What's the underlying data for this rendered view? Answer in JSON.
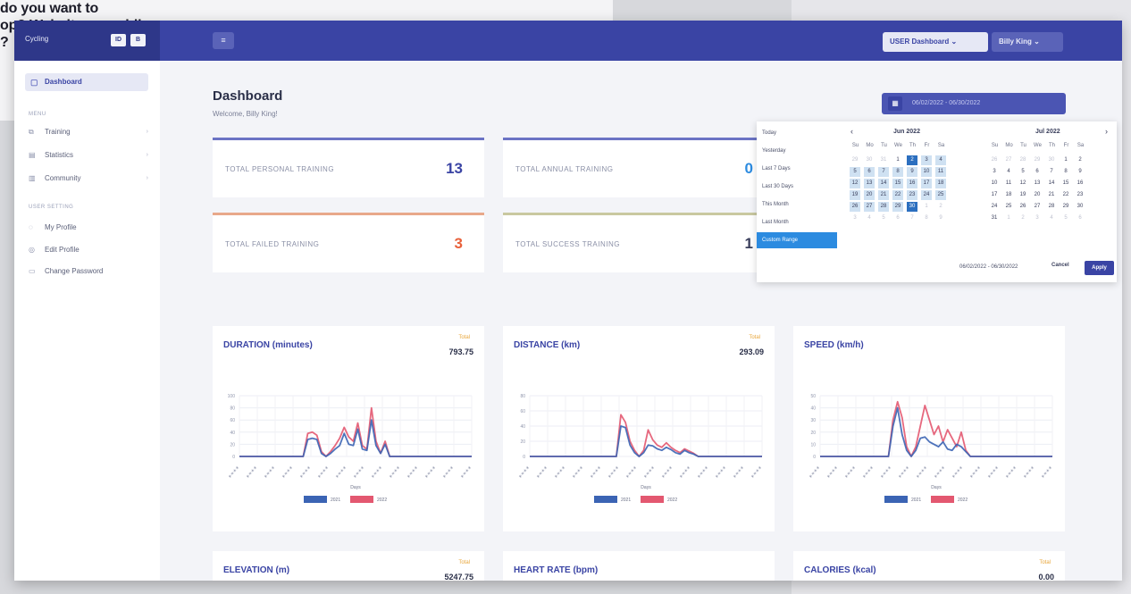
{
  "background": {
    "lines": [
      "do you want to",
      "op? Website or mobile",
      "?"
    ]
  },
  "topbar": {
    "brand": "Cycling",
    "brand_buttons": [
      "ID",
      "B"
    ],
    "menu_icon": "menu-icon",
    "dashboard_select": "USER Dashboard",
    "user_select": "Billy King"
  },
  "sidebar": {
    "active": "Dashboard",
    "section_menu": "MENU",
    "menu_items": [
      "Training",
      "Statistics",
      "Community"
    ],
    "section_user": "USER SETTING",
    "user_items": [
      "My Profile",
      "Edit Profile",
      "Change Password"
    ]
  },
  "header": {
    "title": "Dashboard",
    "subtitle": "Welcome, Billy King!",
    "date_range": "06/02/2022 - 06/30/2022"
  },
  "stats": [
    {
      "label": "TOTAL PERSONAL TRAINING",
      "value": "13",
      "color": "#3a44a4"
    },
    {
      "label": "TOTAL ANNUAL TRAINING",
      "value": "0",
      "color": "#2c8be0"
    },
    {
      "label": "TOTAL FAILED TRAINING",
      "value": "3",
      "color": "#e8603a"
    },
    {
      "label": "TOTAL SUCCESS TRAINING",
      "value": "1",
      "color": "#3a3f5c"
    }
  ],
  "cards": [
    {
      "title": "DURATION (minutes)",
      "total_label": "Total",
      "total": "793.75"
    },
    {
      "title": "DISTANCE (km)",
      "total_label": "Total",
      "total": "293.09"
    },
    {
      "title": "SPEED (km/h)",
      "total_label": "",
      "total": ""
    },
    {
      "title": "ELEVATION (m)",
      "total_label": "Total",
      "total": "5247.75"
    },
    {
      "title": "HEART RATE (bpm)",
      "total_label": "",
      "total": ""
    },
    {
      "title": "CALORIES (kcal)",
      "total_label": "Total",
      "total": "0.00"
    }
  ],
  "chart_common": {
    "xlabel": "Days",
    "legend": [
      "2021",
      "2022"
    ],
    "series_colors": [
      "#3b64b4",
      "#e35870"
    ]
  },
  "chart_data": [
    {
      "type": "line",
      "title": "DURATION (minutes)",
      "xlabel": "Days",
      "ylim": [
        0,
        100
      ],
      "yticks": [
        0,
        20,
        40,
        60,
        80,
        100
      ],
      "series": [
        {
          "name": "2021",
          "values": [
            0,
            0,
            0,
            0,
            0,
            0,
            0,
            0,
            0,
            0,
            0,
            0,
            0,
            0,
            0,
            28,
            30,
            28,
            5,
            0,
            5,
            12,
            18,
            38,
            20,
            18,
            45,
            12,
            10,
            60,
            18,
            5,
            20,
            0,
            0,
            0,
            0,
            0,
            0,
            0,
            0,
            0,
            0,
            0,
            0,
            0,
            0,
            0,
            0,
            0,
            0,
            0
          ]
        },
        {
          "name": "2022",
          "values": [
            0,
            0,
            0,
            0,
            0,
            0,
            0,
            0,
            0,
            0,
            0,
            0,
            0,
            0,
            0,
            38,
            40,
            35,
            8,
            0,
            8,
            18,
            30,
            48,
            32,
            25,
            55,
            18,
            12,
            80,
            25,
            5,
            25,
            0,
            0,
            0,
            0,
            0,
            0,
            0,
            0,
            0,
            0,
            0,
            0,
            0,
            0,
            0,
            0,
            0,
            0,
            0
          ]
        }
      ]
    },
    {
      "type": "line",
      "title": "DISTANCE (km)",
      "xlabel": "Days",
      "ylim": [
        0,
        80
      ],
      "yticks": [
        0,
        20,
        40,
        60,
        80
      ],
      "series": [
        {
          "name": "2021",
          "values": [
            0,
            0,
            0,
            0,
            0,
            0,
            0,
            0,
            0,
            0,
            0,
            0,
            0,
            0,
            0,
            0,
            0,
            0,
            0,
            0,
            40,
            38,
            15,
            5,
            0,
            5,
            15,
            14,
            10,
            8,
            12,
            9,
            5,
            3,
            8,
            5,
            3,
            0,
            0,
            0,
            0,
            0,
            0,
            0,
            0,
            0,
            0,
            0,
            0,
            0,
            0,
            0
          ]
        },
        {
          "name": "2022",
          "values": [
            0,
            0,
            0,
            0,
            0,
            0,
            0,
            0,
            0,
            0,
            0,
            0,
            0,
            0,
            0,
            0,
            0,
            0,
            0,
            0,
            55,
            45,
            20,
            8,
            0,
            8,
            35,
            22,
            15,
            12,
            18,
            12,
            8,
            5,
            10,
            7,
            4,
            0,
            0,
            0,
            0,
            0,
            0,
            0,
            0,
            0,
            0,
            0,
            0,
            0,
            0,
            0
          ]
        }
      ]
    },
    {
      "type": "line",
      "title": "SPEED (km/h)",
      "xlabel": "Days",
      "ylim": [
        0,
        50
      ],
      "yticks": [
        0,
        10,
        20,
        30,
        40,
        50
      ],
      "series": [
        {
          "name": "2021",
          "values": [
            0,
            0,
            0,
            0,
            0,
            0,
            0,
            0,
            0,
            0,
            0,
            0,
            0,
            0,
            0,
            0,
            25,
            40,
            18,
            5,
            0,
            5,
            15,
            16,
            12,
            10,
            8,
            12,
            6,
            5,
            10,
            8,
            4,
            0,
            0,
            0,
            0,
            0,
            0,
            0,
            0,
            0,
            0,
            0,
            0,
            0,
            0,
            0,
            0,
            0,
            0,
            0
          ]
        },
        {
          "name": "2022",
          "values": [
            0,
            0,
            0,
            0,
            0,
            0,
            0,
            0,
            0,
            0,
            0,
            0,
            0,
            0,
            0,
            0,
            30,
            45,
            32,
            8,
            0,
            8,
            25,
            42,
            30,
            18,
            25,
            12,
            22,
            15,
            8,
            20,
            5,
            0,
            0,
            0,
            0,
            0,
            0,
            0,
            0,
            0,
            0,
            0,
            0,
            0,
            0,
            0,
            0,
            0,
            0,
            0
          ]
        }
      ]
    }
  ],
  "picker": {
    "ranges": [
      "Today",
      "Yesterday",
      "Last 7 Days",
      "Last 30 Days",
      "This Month",
      "Last Month",
      "Custom Range"
    ],
    "active_range": "Custom Range",
    "left_month": "Jun 2022",
    "right_month": "Jul 2022",
    "weekdays": [
      "Su",
      "Mo",
      "Tu",
      "We",
      "Th",
      "Fr",
      "Sa"
    ],
    "left_days": [
      [
        "29",
        "30",
        "31",
        "1",
        "2",
        "3",
        "4"
      ],
      [
        "5",
        "6",
        "7",
        "8",
        "9",
        "10",
        "11"
      ],
      [
        "12",
        "13",
        "14",
        "15",
        "16",
        "17",
        "18"
      ],
      [
        "19",
        "20",
        "21",
        "22",
        "23",
        "24",
        "25"
      ],
      [
        "26",
        "27",
        "28",
        "29",
        "30",
        "1",
        "2"
      ],
      [
        "3",
        "4",
        "5",
        "6",
        "7",
        "8",
        "9"
      ]
    ],
    "right_days": [
      [
        "26",
        "27",
        "28",
        "29",
        "30",
        "1",
        "2"
      ],
      [
        "3",
        "4",
        "5",
        "6",
        "7",
        "8",
        "9"
      ],
      [
        "10",
        "11",
        "12",
        "13",
        "14",
        "15",
        "16"
      ],
      [
        "17",
        "18",
        "19",
        "20",
        "21",
        "22",
        "23"
      ],
      [
        "24",
        "25",
        "26",
        "27",
        "28",
        "29",
        "30"
      ],
      [
        "31",
        "1",
        "2",
        "3",
        "4",
        "5",
        "6"
      ]
    ],
    "selected_text": "06/02/2022 - 06/30/2022",
    "cancel": "Cancel",
    "apply": "Apply"
  }
}
